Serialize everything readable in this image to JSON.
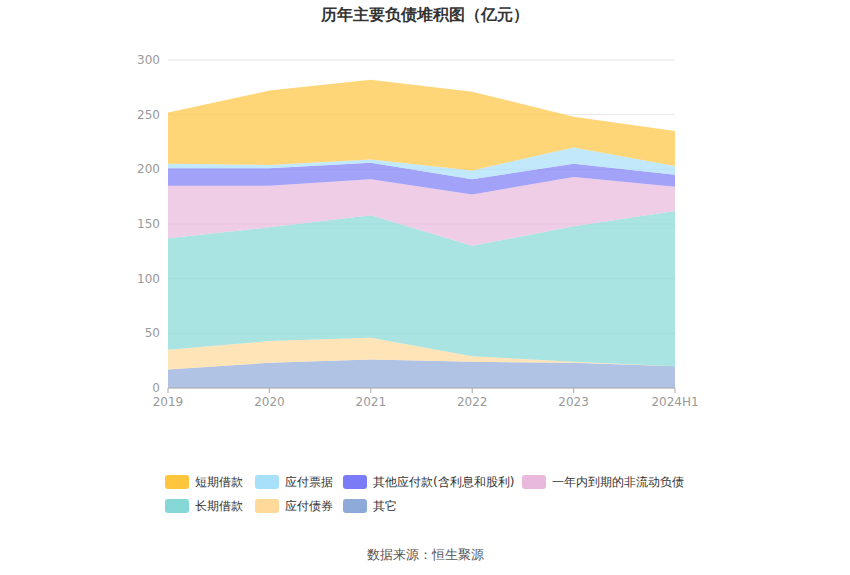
{
  "chart_data": {
    "type": "area",
    "title": "历年主要负债堆积图（亿元）",
    "source": "数据来源：恒生聚源",
    "stacked": true,
    "grid": true,
    "legend": "bottom",
    "categories": [
      "2019",
      "2020",
      "2021",
      "2022",
      "2023",
      "2024H1"
    ],
    "ylim": [
      0,
      300
    ],
    "yticks": [
      0,
      50,
      100,
      150,
      200,
      250,
      300
    ],
    "series": [
      {
        "name": "短期借款",
        "color": "#ffc53d",
        "values": [
          47,
          68,
          73,
          72,
          28,
          32
        ]
      },
      {
        "name": "应付票据",
        "color": "#a8e0fa",
        "values": [
          4,
          3,
          3,
          8,
          15,
          8
        ]
      },
      {
        "name": "其他应付款(含利息和股利)",
        "color": "#7b7bf7",
        "values": [
          16,
          16,
          15,
          14,
          12,
          11
        ]
      },
      {
        "name": "一年内到期的非流动负债",
        "color": "#e8b8dd",
        "values": [
          48,
          38,
          33,
          47,
          45,
          22
        ]
      },
      {
        "name": "长期借款",
        "color": "#85d8d6",
        "values": [
          102,
          104,
          112,
          101,
          124,
          142
        ]
      },
      {
        "name": "应付债券",
        "color": "#ffd999",
        "values": [
          18,
          20,
          20,
          5,
          1,
          0
        ]
      },
      {
        "name": "其它",
        "color": "#8eaad8",
        "values": [
          17,
          23,
          26,
          24,
          23,
          20
        ]
      }
    ]
  }
}
